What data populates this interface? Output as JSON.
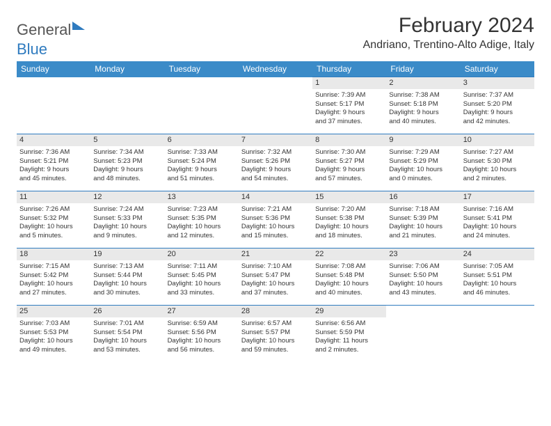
{
  "logo": {
    "word1": "General",
    "word2": "Blue"
  },
  "title": "February 2024",
  "location": "Andriano, Trentino-Alto Adige, Italy",
  "day_headers": [
    "Sunday",
    "Monday",
    "Tuesday",
    "Wednesday",
    "Thursday",
    "Friday",
    "Saturday"
  ],
  "colors": {
    "header_bg": "#3b8bc8",
    "header_text": "#ffffff",
    "row_border": "#2f7bbf",
    "daynum_bg": "#e9e9e9",
    "text": "#333333",
    "background": "#ffffff"
  },
  "font": {
    "title_size": 30,
    "location_size": 16,
    "header_size": 12,
    "cell_size": 9.5,
    "daynum_size": 11
  },
  "weeks": [
    [
      null,
      null,
      null,
      null,
      {
        "n": "1",
        "sunrise": "7:39 AM",
        "sunset": "5:17 PM",
        "dl1": "9 hours",
        "dl2": "and 37 minutes."
      },
      {
        "n": "2",
        "sunrise": "7:38 AM",
        "sunset": "5:18 PM",
        "dl1": "9 hours",
        "dl2": "and 40 minutes."
      },
      {
        "n": "3",
        "sunrise": "7:37 AM",
        "sunset": "5:20 PM",
        "dl1": "9 hours",
        "dl2": "and 42 minutes."
      }
    ],
    [
      {
        "n": "4",
        "sunrise": "7:36 AM",
        "sunset": "5:21 PM",
        "dl1": "9 hours",
        "dl2": "and 45 minutes."
      },
      {
        "n": "5",
        "sunrise": "7:34 AM",
        "sunset": "5:23 PM",
        "dl1": "9 hours",
        "dl2": "and 48 minutes."
      },
      {
        "n": "6",
        "sunrise": "7:33 AM",
        "sunset": "5:24 PM",
        "dl1": "9 hours",
        "dl2": "and 51 minutes."
      },
      {
        "n": "7",
        "sunrise": "7:32 AM",
        "sunset": "5:26 PM",
        "dl1": "9 hours",
        "dl2": "and 54 minutes."
      },
      {
        "n": "8",
        "sunrise": "7:30 AM",
        "sunset": "5:27 PM",
        "dl1": "9 hours",
        "dl2": "and 57 minutes."
      },
      {
        "n": "9",
        "sunrise": "7:29 AM",
        "sunset": "5:29 PM",
        "dl1": "10 hours",
        "dl2": "and 0 minutes."
      },
      {
        "n": "10",
        "sunrise": "7:27 AM",
        "sunset": "5:30 PM",
        "dl1": "10 hours",
        "dl2": "and 2 minutes."
      }
    ],
    [
      {
        "n": "11",
        "sunrise": "7:26 AM",
        "sunset": "5:32 PM",
        "dl1": "10 hours",
        "dl2": "and 5 minutes."
      },
      {
        "n": "12",
        "sunrise": "7:24 AM",
        "sunset": "5:33 PM",
        "dl1": "10 hours",
        "dl2": "and 9 minutes."
      },
      {
        "n": "13",
        "sunrise": "7:23 AM",
        "sunset": "5:35 PM",
        "dl1": "10 hours",
        "dl2": "and 12 minutes."
      },
      {
        "n": "14",
        "sunrise": "7:21 AM",
        "sunset": "5:36 PM",
        "dl1": "10 hours",
        "dl2": "and 15 minutes."
      },
      {
        "n": "15",
        "sunrise": "7:20 AM",
        "sunset": "5:38 PM",
        "dl1": "10 hours",
        "dl2": "and 18 minutes."
      },
      {
        "n": "16",
        "sunrise": "7:18 AM",
        "sunset": "5:39 PM",
        "dl1": "10 hours",
        "dl2": "and 21 minutes."
      },
      {
        "n": "17",
        "sunrise": "7:16 AM",
        "sunset": "5:41 PM",
        "dl1": "10 hours",
        "dl2": "and 24 minutes."
      }
    ],
    [
      {
        "n": "18",
        "sunrise": "7:15 AM",
        "sunset": "5:42 PM",
        "dl1": "10 hours",
        "dl2": "and 27 minutes."
      },
      {
        "n": "19",
        "sunrise": "7:13 AM",
        "sunset": "5:44 PM",
        "dl1": "10 hours",
        "dl2": "and 30 minutes."
      },
      {
        "n": "20",
        "sunrise": "7:11 AM",
        "sunset": "5:45 PM",
        "dl1": "10 hours",
        "dl2": "and 33 minutes."
      },
      {
        "n": "21",
        "sunrise": "7:10 AM",
        "sunset": "5:47 PM",
        "dl1": "10 hours",
        "dl2": "and 37 minutes."
      },
      {
        "n": "22",
        "sunrise": "7:08 AM",
        "sunset": "5:48 PM",
        "dl1": "10 hours",
        "dl2": "and 40 minutes."
      },
      {
        "n": "23",
        "sunrise": "7:06 AM",
        "sunset": "5:50 PM",
        "dl1": "10 hours",
        "dl2": "and 43 minutes."
      },
      {
        "n": "24",
        "sunrise": "7:05 AM",
        "sunset": "5:51 PM",
        "dl1": "10 hours",
        "dl2": "and 46 minutes."
      }
    ],
    [
      {
        "n": "25",
        "sunrise": "7:03 AM",
        "sunset": "5:53 PM",
        "dl1": "10 hours",
        "dl2": "and 49 minutes."
      },
      {
        "n": "26",
        "sunrise": "7:01 AM",
        "sunset": "5:54 PM",
        "dl1": "10 hours",
        "dl2": "and 53 minutes."
      },
      {
        "n": "27",
        "sunrise": "6:59 AM",
        "sunset": "5:56 PM",
        "dl1": "10 hours",
        "dl2": "and 56 minutes."
      },
      {
        "n": "28",
        "sunrise": "6:57 AM",
        "sunset": "5:57 PM",
        "dl1": "10 hours",
        "dl2": "and 59 minutes."
      },
      {
        "n": "29",
        "sunrise": "6:56 AM",
        "sunset": "5:59 PM",
        "dl1": "11 hours",
        "dl2": "and 2 minutes."
      },
      null,
      null
    ]
  ],
  "labels": {
    "sunrise": "Sunrise: ",
    "sunset": "Sunset: ",
    "daylight": "Daylight: "
  }
}
